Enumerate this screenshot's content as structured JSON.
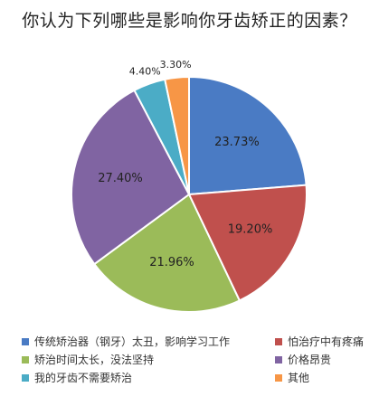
{
  "chart_data": {
    "type": "pie",
    "title": "你认为下列哪些是影响你牙齿矫正的因素？",
    "slices": [
      {
        "label": "传统矫治器（钢牙）太丑，影响学习工作",
        "value": 23.73,
        "display": "23.73%",
        "color": "#4a7bc4"
      },
      {
        "label": "怕治疗中有疼痛",
        "value": 19.2,
        "display": "19.20%",
        "color": "#c0504d"
      },
      {
        "label": "矫治时间太长，没法坚持",
        "value": 21.96,
        "display": "21.96%",
        "color": "#9bbb59"
      },
      {
        "label": "价格昂贵",
        "value": 27.4,
        "display": "27.40%",
        "color": "#8064a2"
      },
      {
        "label": "我的牙齿不需要矫治",
        "value": 4.4,
        "display": "4.40%",
        "color": "#4bacc6"
      },
      {
        "label": "其他",
        "value": 3.3,
        "display": "3.30%",
        "color": "#f79646"
      }
    ],
    "legend_order": [
      0,
      1,
      2,
      3,
      4,
      5
    ],
    "legend_position": "bottom"
  }
}
